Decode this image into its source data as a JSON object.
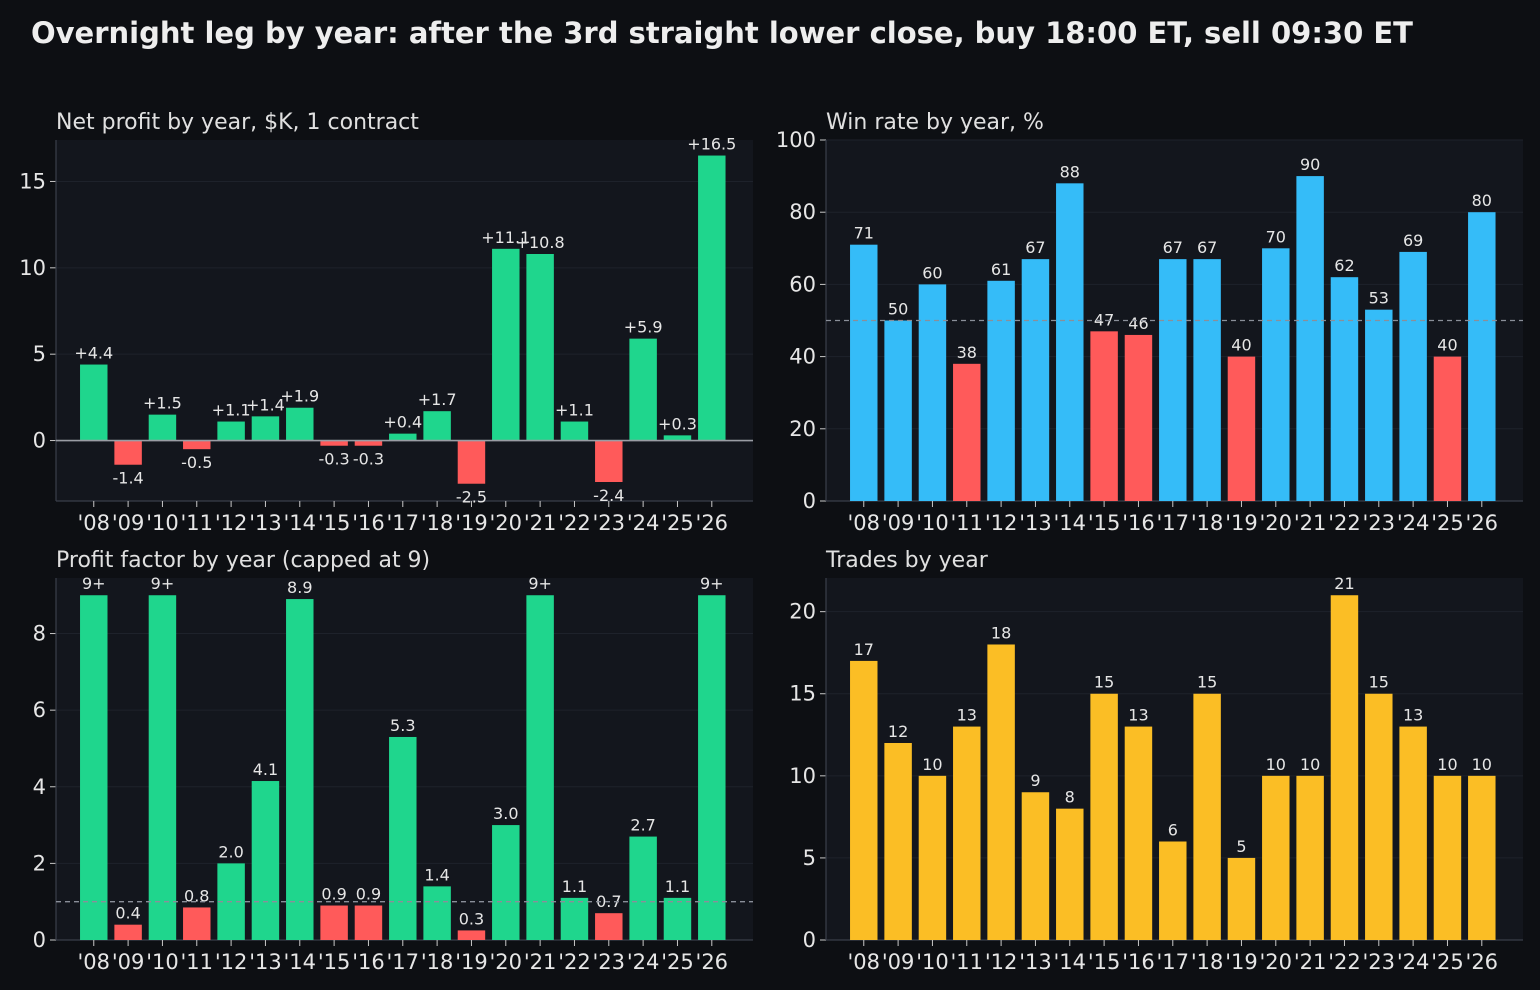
{
  "title": "Overnight leg by year: after the 3rd straight lower close, buy 18:00 ET, sell 09:30 ET",
  "colors": {
    "positive": "#1fd68d",
    "negative": "#ff5a5a",
    "winrate": "#35bcf8",
    "trades": "#fbbe25",
    "figure_bg": "#0d0f13",
    "panel_bg": "#13161d"
  },
  "chart_data": [
    {
      "type": "bar",
      "title": "Net profit by year, $K, 1 contract",
      "categories": [
        "'08",
        "'09",
        "'10",
        "'11",
        "'12",
        "'13",
        "'14",
        "'15",
        "'16",
        "'17",
        "'18",
        "'19",
        "'20",
        "'21",
        "'22",
        "'23",
        "'24",
        "'25",
        "'26"
      ],
      "values": [
        4.4,
        -1.4,
        1.5,
        -0.5,
        1.1,
        1.4,
        1.9,
        -0.3,
        -0.3,
        0.4,
        1.7,
        -2.5,
        11.1,
        10.8,
        1.1,
        -2.4,
        5.9,
        0.3,
        16.5
      ],
      "labels": [
        "+4.4",
        "-1.4",
        "+1.5",
        "-0.5",
        "+1.1",
        "+1.4",
        "+1.9",
        "-0.3",
        "-0.3",
        "+0.4",
        "+1.7",
        "-2.5",
        "+11.1",
        "+10.8",
        "+1.1",
        "-2.4",
        "+5.9",
        "+0.3",
        "+16.5"
      ],
      "ylim": [
        -3.5,
        17.4
      ],
      "yticks": [
        0,
        5,
        10,
        15
      ],
      "ytick_labels": [
        "0",
        "5",
        "10",
        "15"
      ],
      "reference_line": 0,
      "reference_style": "solid",
      "grid": true
    },
    {
      "type": "bar",
      "title": "Win rate by year, %",
      "categories": [
        "'08",
        "'09",
        "'10",
        "'11",
        "'12",
        "'13",
        "'14",
        "'15",
        "'16",
        "'17",
        "'18",
        "'19",
        "'20",
        "'21",
        "'22",
        "'23",
        "'24",
        "'25",
        "'26"
      ],
      "values": [
        71,
        50,
        60,
        38,
        61,
        67,
        88,
        47,
        46,
        67,
        67,
        40,
        70,
        90,
        62,
        53,
        69,
        40,
        80
      ],
      "labels": [
        "71",
        "50",
        "60",
        "38",
        "61",
        "67",
        "88",
        "47",
        "46",
        "67",
        "67",
        "40",
        "70",
        "90",
        "62",
        "53",
        "69",
        "40",
        "80"
      ],
      "ylim": [
        0,
        100
      ],
      "yticks": [
        0,
        20,
        40,
        60,
        80,
        100
      ],
      "ytick_labels": [
        "0",
        "20",
        "40",
        "60",
        "80",
        "100"
      ],
      "reference_line": 50,
      "reference_style": "dashed",
      "grid": true
    },
    {
      "type": "bar",
      "title": "Profit factor by year (capped at 9)",
      "categories": [
        "'08",
        "'09",
        "'10",
        "'11",
        "'12",
        "'13",
        "'14",
        "'15",
        "'16",
        "'17",
        "'18",
        "'19",
        "'20",
        "'21",
        "'22",
        "'23",
        "'24",
        "'25",
        "'26"
      ],
      "values": [
        9,
        0.4,
        9,
        0.85,
        2.0,
        4.15,
        8.9,
        0.9,
        0.9,
        5.3,
        1.4,
        0.25,
        3.0,
        9,
        1.1,
        0.7,
        2.7,
        1.1,
        9
      ],
      "labels": [
        "9+",
        "0.4",
        "9+",
        "0.8",
        "2.0",
        "4.1",
        "8.9",
        "0.9",
        "0.9",
        "5.3",
        "1.4",
        "0.3",
        "3.0",
        "9+",
        "1.1",
        "0.7",
        "2.7",
        "1.1",
        "9+"
      ],
      "ylim": [
        0,
        9.45
      ],
      "yticks": [
        0,
        2,
        4,
        6,
        8
      ],
      "ytick_labels": [
        "0",
        "2",
        "4",
        "6",
        "8"
      ],
      "reference_line": 1,
      "reference_style": "dashed",
      "grid": true
    },
    {
      "type": "bar",
      "title": "Trades by year",
      "categories": [
        "'08",
        "'09",
        "'10",
        "'11",
        "'12",
        "'13",
        "'14",
        "'15",
        "'16",
        "'17",
        "'18",
        "'19",
        "'20",
        "'21",
        "'22",
        "'23",
        "'24",
        "'25",
        "'26"
      ],
      "values": [
        17,
        12,
        10,
        13,
        18,
        9,
        8,
        15,
        13,
        6,
        15,
        5,
        10,
        10,
        21,
        15,
        13,
        10,
        10
      ],
      "labels": [
        "17",
        "12",
        "10",
        "13",
        "18",
        "9",
        "8",
        "15",
        "13",
        "6",
        "15",
        "5",
        "10",
        "10",
        "21",
        "15",
        "13",
        "10",
        "10"
      ],
      "ylim": [
        0,
        22.05
      ],
      "yticks": [
        0,
        5,
        10,
        15,
        20
      ],
      "ytick_labels": [
        "0",
        "5",
        "10",
        "15",
        "20"
      ],
      "grid": true
    }
  ]
}
